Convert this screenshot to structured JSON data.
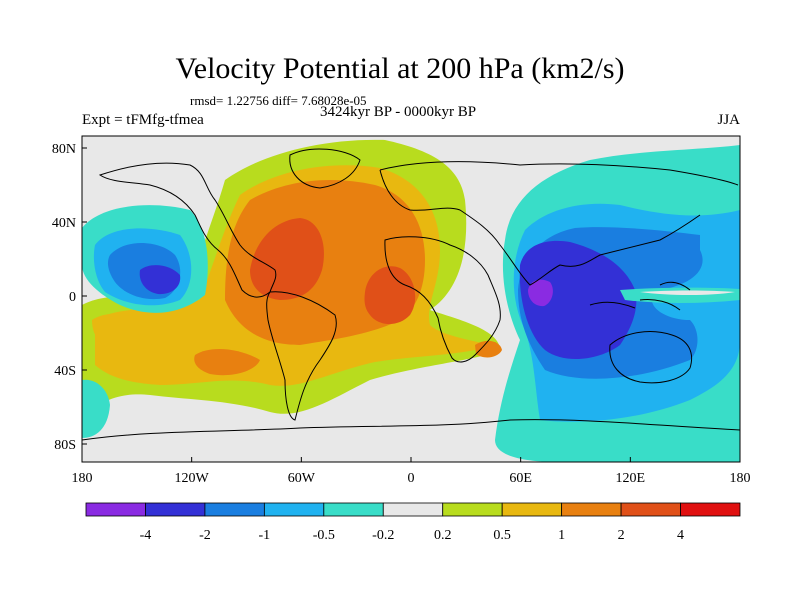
{
  "title": "Velocity Potential at 200 hPa (km2/s)",
  "stats": "rmsd= 1.22756 diff= 7.68028e-05",
  "experiment": "Expt = tFMfg-tfmea",
  "period": "3424kyr BP - 0000kyr BP",
  "season": "JJA",
  "lat_ticks": [
    "80N",
    "40N",
    "0",
    "40S",
    "80S"
  ],
  "lon_ticks": [
    "180",
    "120W",
    "60W",
    "0",
    "60E",
    "120E",
    "180"
  ],
  "colorbar": {
    "colors": [
      "#8a2be2",
      "#3330d6",
      "#1a7ee0",
      "#20b2f0",
      "#39ddc8",
      "#e8e8e8",
      "#b8dc1e",
      "#e8b810",
      "#e88010",
      "#e05018",
      "#e01010"
    ],
    "labels": [
      "-4",
      "-2",
      "-1",
      "-0.5",
      "-0.2",
      "0.2",
      "0.5",
      "1",
      "2",
      "4"
    ]
  },
  "palette": {
    "ocean": "#e8e8e8",
    "neg_1": "#39ddc8",
    "neg_2": "#20b2f0",
    "neg_3": "#1a7ee0",
    "neg_4": "#3330d6",
    "neg_5": "#8a2be2",
    "pos_1": "#b8dc1e",
    "pos_2": "#e8b810",
    "pos_3": "#e88010",
    "pos_4": "#e05018"
  }
}
